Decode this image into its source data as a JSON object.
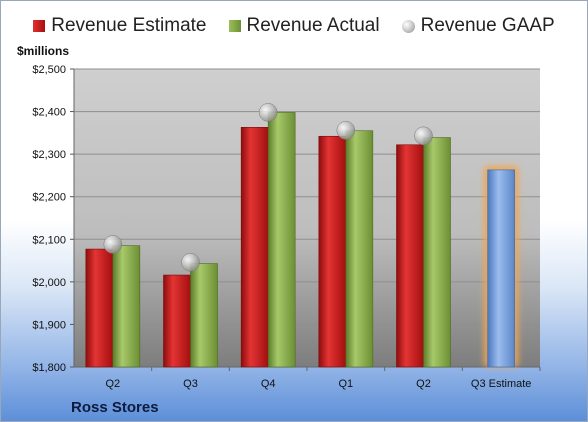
{
  "units_label": "$millions",
  "company": "Ross Stores",
  "legend": [
    {
      "label": "Revenue Estimate"
    },
    {
      "label": "Revenue Actual"
    },
    {
      "label": "Revenue GAAP"
    }
  ],
  "colors": {
    "estimate": "#c8191b",
    "actual": "#86a84a",
    "gaap": "#b5b5b5",
    "projection": "#6e9bd6",
    "projection_glow": "#f3a450"
  },
  "chart_data": {
    "type": "bar",
    "categories": [
      "Q2",
      "Q3",
      "Q4",
      "Q1",
      "Q2",
      "Q3 Estimate"
    ],
    "series": [
      {
        "name": "Revenue Estimate",
        "values": [
          2077,
          2016,
          2363,
          2342,
          2322,
          null
        ]
      },
      {
        "name": "Revenue Actual",
        "values": [
          2085,
          2043,
          2398,
          2355,
          2339,
          null
        ]
      },
      {
        "name": "Revenue GAAP",
        "values": [
          2088,
          2046,
          2398,
          2356,
          2343,
          null
        ]
      }
    ],
    "projection": {
      "category": "Q3 Estimate",
      "value": 2263
    },
    "ylim": [
      1800,
      2500
    ],
    "yticks": [
      1800,
      1900,
      2000,
      2100,
      2200,
      2300,
      2400,
      2500
    ],
    "ytick_labels": [
      "$1,800",
      "$1,900",
      "$2,000",
      "$2,100",
      "$2,200",
      "$2,300",
      "$2,400",
      "$2,500"
    ],
    "grid": true,
    "legend_position": "top"
  }
}
